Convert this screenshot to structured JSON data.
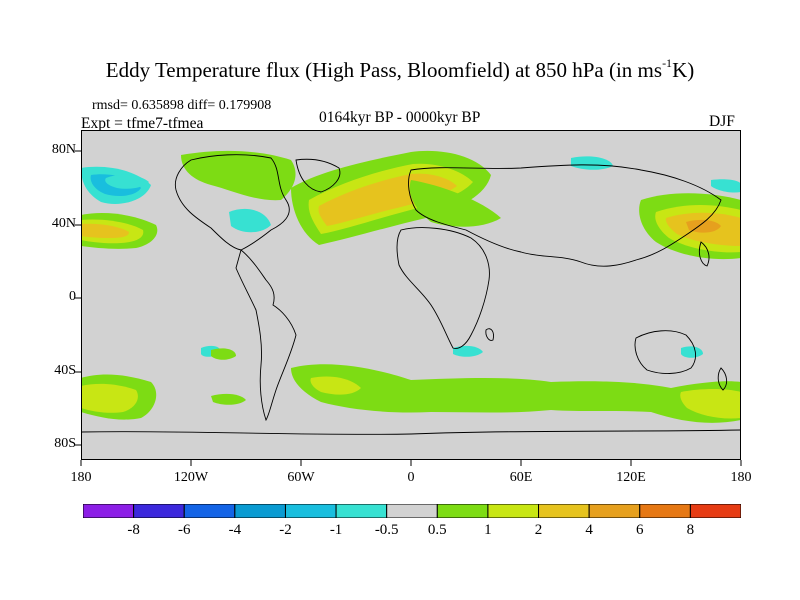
{
  "title": {
    "main": "Eddy Temperature flux (High Pass, Bloomfield) at 850 hPa (in ms",
    "superscript": "-1",
    "suffix": "K)"
  },
  "stats": {
    "rmsd_diff": "rmsd= 0.635898 diff= 0.179908",
    "expt": "Expt = tfme7-tfmea",
    "period": "0164kyr BP - 0000kyr BP",
    "season": "DJF"
  },
  "axes": {
    "x_ticks": [
      "180",
      "120W",
      "60W",
      "0",
      "60E",
      "120E",
      "180"
    ],
    "y_ticks": [
      "80N",
      "40N",
      "0",
      "40S",
      "80S"
    ]
  },
  "colorbar": {
    "labels": [
      "-8",
      "-6",
      "-4",
      "-2",
      "-1",
      "-0.5",
      "0.5",
      "1",
      "2",
      "4",
      "6",
      "8"
    ],
    "colors": [
      "#8c1ee6",
      "#3c28dc",
      "#1464e6",
      "#0a9bd2",
      "#19bede",
      "#37e1d2",
      "#d2d2d2",
      "#7ddc14",
      "#c8e614",
      "#e6c31e",
      "#e6a01e",
      "#e67814",
      "#e63c14"
    ]
  },
  "map": {
    "background_color": "#d2d2d2",
    "frame_color": "#000000"
  }
}
